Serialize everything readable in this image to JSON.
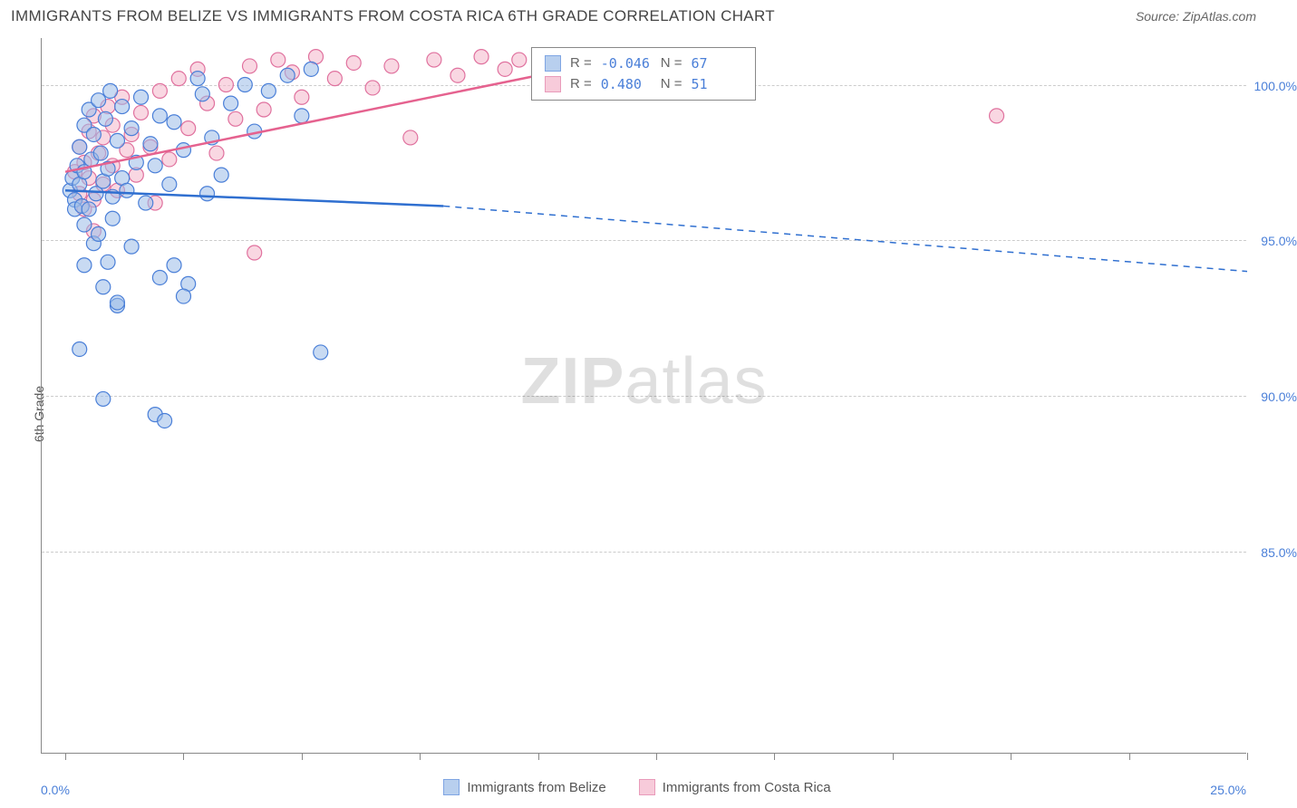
{
  "header": {
    "title": "IMMIGRANTS FROM BELIZE VS IMMIGRANTS FROM COSTA RICA 6TH GRADE CORRELATION CHART",
    "source": "Source: ZipAtlas.com"
  },
  "chart": {
    "type": "scatter",
    "ylabel": "6th Grade",
    "background_color": "#ffffff",
    "grid_color": "#cccccc",
    "axis_color": "#888888",
    "y_axis": {
      "min": 78.5,
      "max": 101.5,
      "ticks": [
        85.0,
        90.0,
        95.0,
        100.0
      ],
      "tick_labels": [
        "85.0%",
        "90.0%",
        "95.0%",
        "100.0%"
      ],
      "tick_color": "#4a7fd8"
    },
    "x_axis": {
      "min": -0.5,
      "max": 25.0,
      "tick_positions": [
        0,
        2.5,
        5.0,
        7.5,
        10.0,
        12.5,
        15.0,
        17.5,
        20.0,
        22.5,
        25.0
      ],
      "start_label": "0.0%",
      "end_label": "25.0%"
    },
    "marker_radius": 8,
    "series_a": {
      "name": "Immigrants from Belize",
      "color_fill": "#9bbce8",
      "color_stroke": "#4a7fd8",
      "R": "-0.046",
      "N": "67",
      "trend": {
        "x1": 0.0,
        "y1": 96.6,
        "x2_solid": 8.0,
        "y2_solid": 96.1,
        "x2_dash": 25.0,
        "y2_dash": 94.0
      },
      "points": [
        [
          0.1,
          96.6
        ],
        [
          0.15,
          97.0
        ],
        [
          0.2,
          96.3
        ],
        [
          0.2,
          96.0
        ],
        [
          0.25,
          97.4
        ],
        [
          0.3,
          98.0
        ],
        [
          0.3,
          96.8
        ],
        [
          0.35,
          96.1
        ],
        [
          0.4,
          97.2
        ],
        [
          0.4,
          95.5
        ],
        [
          0.4,
          98.7
        ],
        [
          0.5,
          99.2
        ],
        [
          0.5,
          96.0
        ],
        [
          0.55,
          97.6
        ],
        [
          0.6,
          94.9
        ],
        [
          0.6,
          98.4
        ],
        [
          0.65,
          96.5
        ],
        [
          0.7,
          99.5
        ],
        [
          0.7,
          95.2
        ],
        [
          0.75,
          97.8
        ],
        [
          0.8,
          96.9
        ],
        [
          0.8,
          93.5
        ],
        [
          0.85,
          98.9
        ],
        [
          0.9,
          97.3
        ],
        [
          0.9,
          94.3
        ],
        [
          0.95,
          99.8
        ],
        [
          1.0,
          96.4
        ],
        [
          1.0,
          95.7
        ],
        [
          1.1,
          98.2
        ],
        [
          1.1,
          92.9
        ],
        [
          1.2,
          97.0
        ],
        [
          1.2,
          99.3
        ],
        [
          1.3,
          96.6
        ],
        [
          1.4,
          94.8
        ],
        [
          1.4,
          98.6
        ],
        [
          1.5,
          97.5
        ],
        [
          1.6,
          99.6
        ],
        [
          1.7,
          96.2
        ],
        [
          1.8,
          98.1
        ],
        [
          1.9,
          97.4
        ],
        [
          2.0,
          93.8
        ],
        [
          2.0,
          99.0
        ],
        [
          2.2,
          96.8
        ],
        [
          2.3,
          94.2
        ],
        [
          2.3,
          98.8
        ],
        [
          2.5,
          97.9
        ],
        [
          2.6,
          93.6
        ],
        [
          2.8,
          100.2
        ],
        [
          2.9,
          99.7
        ],
        [
          3.0,
          96.5
        ],
        [
          3.1,
          98.3
        ],
        [
          3.3,
          97.1
        ],
        [
          3.5,
          99.4
        ],
        [
          3.8,
          100.0
        ],
        [
          4.0,
          98.5
        ],
        [
          4.3,
          99.8
        ],
        [
          4.7,
          100.3
        ],
        [
          5.0,
          99.0
        ],
        [
          5.2,
          100.5
        ],
        [
          5.4,
          91.4
        ],
        [
          0.4,
          94.2
        ],
        [
          0.3,
          91.5
        ],
        [
          0.8,
          89.9
        ],
        [
          1.9,
          89.4
        ],
        [
          2.1,
          89.2
        ],
        [
          1.1,
          93.0
        ],
        [
          2.5,
          93.2
        ]
      ]
    },
    "series_b": {
      "name": "Immigrants from Costa Rica",
      "color_fill": "#f4b6cb",
      "color_stroke": "#e0719e",
      "R": "0.480",
      "N": "51",
      "trend": {
        "x1": 0.0,
        "y1": 97.2,
        "x2_solid": 10.0,
        "y2_solid": 100.3
      },
      "points": [
        [
          0.2,
          97.2
        ],
        [
          0.3,
          96.5
        ],
        [
          0.3,
          98.0
        ],
        [
          0.4,
          97.5
        ],
        [
          0.4,
          96.0
        ],
        [
          0.5,
          98.5
        ],
        [
          0.5,
          97.0
        ],
        [
          0.6,
          96.3
        ],
        [
          0.6,
          99.0
        ],
        [
          0.7,
          97.8
        ],
        [
          0.8,
          98.3
        ],
        [
          0.8,
          96.8
        ],
        [
          0.9,
          99.3
        ],
        [
          1.0,
          97.4
        ],
        [
          1.0,
          98.7
        ],
        [
          1.1,
          96.6
        ],
        [
          1.2,
          99.6
        ],
        [
          1.3,
          97.9
        ],
        [
          1.4,
          98.4
        ],
        [
          1.5,
          97.1
        ],
        [
          1.6,
          99.1
        ],
        [
          1.8,
          98.0
        ],
        [
          1.9,
          96.2
        ],
        [
          2.0,
          99.8
        ],
        [
          2.2,
          97.6
        ],
        [
          2.4,
          100.2
        ],
        [
          2.6,
          98.6
        ],
        [
          2.8,
          100.5
        ],
        [
          3.0,
          99.4
        ],
        [
          3.2,
          97.8
        ],
        [
          3.4,
          100.0
        ],
        [
          3.6,
          98.9
        ],
        [
          3.9,
          100.6
        ],
        [
          4.2,
          99.2
        ],
        [
          4.5,
          100.8
        ],
        [
          4.8,
          100.4
        ],
        [
          5.0,
          99.6
        ],
        [
          5.3,
          100.9
        ],
        [
          5.7,
          100.2
        ],
        [
          6.1,
          100.7
        ],
        [
          6.5,
          99.9
        ],
        [
          6.9,
          100.6
        ],
        [
          7.3,
          98.3
        ],
        [
          7.8,
          100.8
        ],
        [
          8.3,
          100.3
        ],
        [
          8.8,
          100.9
        ],
        [
          9.3,
          100.5
        ],
        [
          9.6,
          100.8
        ],
        [
          4.0,
          94.6
        ],
        [
          0.6,
          95.3
        ],
        [
          19.7,
          99.0
        ]
      ]
    },
    "legend_top": {
      "r_label": "R =",
      "n_label": "N ="
    },
    "watermark": {
      "zip": "ZIP",
      "atlas": "atlas"
    }
  }
}
